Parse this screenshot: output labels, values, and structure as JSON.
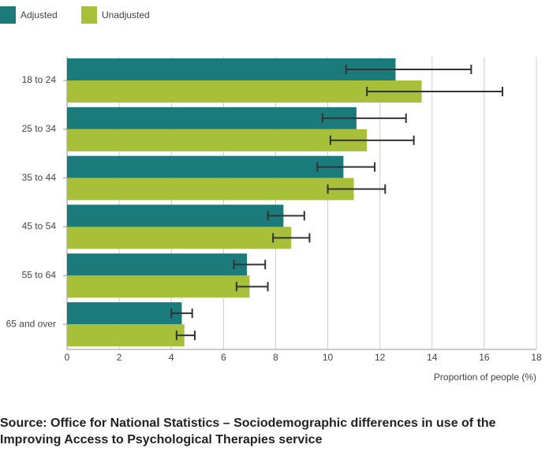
{
  "chart_data": {
    "type": "hbar",
    "source": "Source: Office for National Statistics – Sociodemographic differences in use of the Improving Access to Psychological Therapies service",
    "x_label": "Proportion of people (%)",
    "categories": [
      "18 to 24",
      "25 to 34",
      "35 to 44",
      "45 to 54",
      "55 to 64",
      "65 and over"
    ],
    "series": [
      {
        "name": "Adjusted",
        "color": "#1b7b7b",
        "values": [
          12.6,
          11.1,
          10.6,
          8.3,
          6.9,
          4.4
        ],
        "lower": [
          10.7,
          9.8,
          9.6,
          7.7,
          6.4,
          4.0
        ],
        "upper": [
          15.5,
          13.0,
          11.8,
          9.1,
          7.6,
          4.8
        ]
      },
      {
        "name": "Unadjusted",
        "color": "#a8bf3a",
        "values": [
          13.6,
          11.5,
          11.0,
          8.6,
          7.0,
          4.5
        ],
        "lower": [
          11.5,
          10.1,
          10.0,
          7.9,
          6.5,
          4.2
        ],
        "upper": [
          16.7,
          13.3,
          12.2,
          9.3,
          7.7,
          4.9
        ]
      }
    ],
    "xlim": [
      0,
      18
    ],
    "xticks": [
      0,
      2,
      4,
      6,
      8,
      10,
      12,
      14,
      16,
      18
    ],
    "grid": true
  }
}
